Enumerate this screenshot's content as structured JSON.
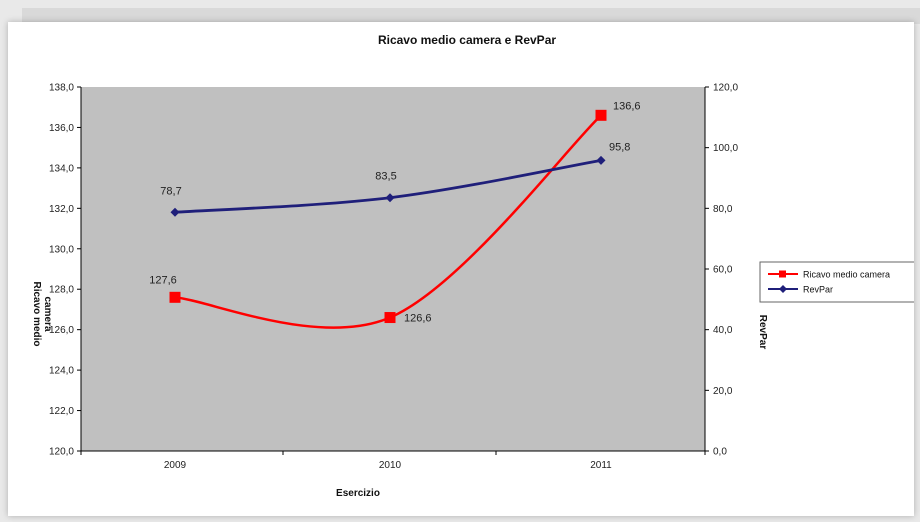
{
  "chart_data": {
    "type": "line",
    "title": "Ricavo medio camera e RevPar",
    "xlabel": "Esercizio",
    "ylabel_left": "Ricavo medio camera",
    "ylabel_right": "RevPar",
    "categories": [
      "2009",
      "2010",
      "2011"
    ],
    "ylim_left": [
      120,
      138
    ],
    "ylim_right": [
      0,
      120
    ],
    "yticks_left": [
      "120,0",
      "122,0",
      "124,0",
      "126,0",
      "128,0",
      "130,0",
      "132,0",
      "134,0",
      "136,0",
      "138,0"
    ],
    "yticks_right": [
      "0,0",
      "20,0",
      "40,0",
      "60,0",
      "80,0",
      "100,0",
      "120,0"
    ],
    "grid": false,
    "legend_position": "right",
    "plot_background": "#c0c0c0",
    "series": [
      {
        "name": "Ricavo medio camera",
        "axis": "left",
        "color": "#ff0000",
        "marker": "square",
        "values": [
          127.6,
          126.6,
          136.6
        ],
        "labels": [
          "127,6",
          "126,6",
          "136,6"
        ]
      },
      {
        "name": "RevPar",
        "axis": "right",
        "color": "#1f1f7a",
        "marker": "diamond",
        "values": [
          78.7,
          83.5,
          95.8
        ],
        "labels": [
          "78,7",
          "83,5",
          "95,8"
        ]
      }
    ]
  }
}
